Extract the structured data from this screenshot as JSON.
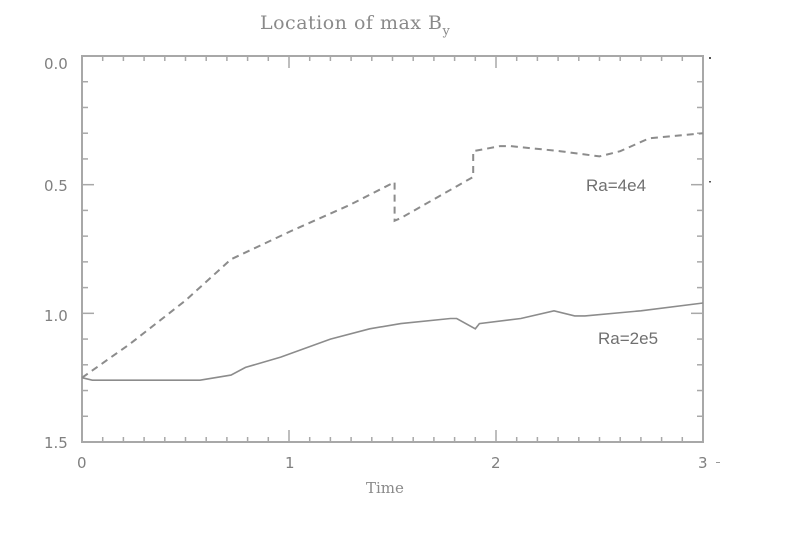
{
  "chart_data": {
    "type": "line",
    "title": "Location of max B",
    "title_subscript": "y",
    "xlabel": "Time",
    "ylabel": "",
    "xlim": [
      0,
      3
    ],
    "ylim": [
      1.5,
      0.0
    ],
    "y_inverted": true,
    "grid": false,
    "x_ticks": [
      "0",
      "1",
      "2",
      "3"
    ],
    "y_ticks": [
      "0.0",
      "0.5",
      "1.0",
      "1.5"
    ],
    "series": [
      {
        "name": "Ra=4e4",
        "style": "dashed",
        "color": "#8c8c8c",
        "x": [
          0.0,
          0.23,
          0.5,
          0.72,
          1.01,
          1.29,
          1.51,
          1.51,
          1.54,
          1.89,
          1.89,
          2.02,
          2.07,
          2.31,
          2.5,
          2.6,
          2.74,
          3.0
        ],
        "y": [
          1.25,
          1.12,
          0.95,
          0.79,
          0.68,
          0.58,
          0.49,
          0.64,
          0.63,
          0.47,
          0.37,
          0.35,
          0.35,
          0.37,
          0.39,
          0.37,
          0.32,
          0.3
        ]
      },
      {
        "name": "Ra=2e5",
        "style": "solid",
        "color": "#8c8c8c",
        "x": [
          0.0,
          0.05,
          0.57,
          0.72,
          0.79,
          0.96,
          1.2,
          1.39,
          1.54,
          1.78,
          1.81,
          1.9,
          1.92,
          2.12,
          2.28,
          2.38,
          2.43,
          2.7,
          3.0
        ],
        "y": [
          1.25,
          1.26,
          1.26,
          1.24,
          1.21,
          1.17,
          1.1,
          1.06,
          1.04,
          1.02,
          1.02,
          1.06,
          1.04,
          1.02,
          0.99,
          1.01,
          1.01,
          0.99,
          0.96
        ]
      }
    ],
    "annotations": [
      {
        "text": "Ra=4e4",
        "x": 2.45,
        "y": 0.52
      },
      {
        "text": "Ra=2e5",
        "x": 2.45,
        "y": 1.05
      }
    ]
  },
  "labels": {
    "title": "Location of max B",
    "title_sub": "y",
    "xlabel": "Time",
    "x_ticks": [
      "0",
      "1",
      "2",
      "3"
    ],
    "y_ticks": [
      "0.0",
      "0.5",
      "1.0",
      "1.5"
    ],
    "annot_a": "Ra=4e4",
    "annot_b": "Ra=2e5"
  }
}
